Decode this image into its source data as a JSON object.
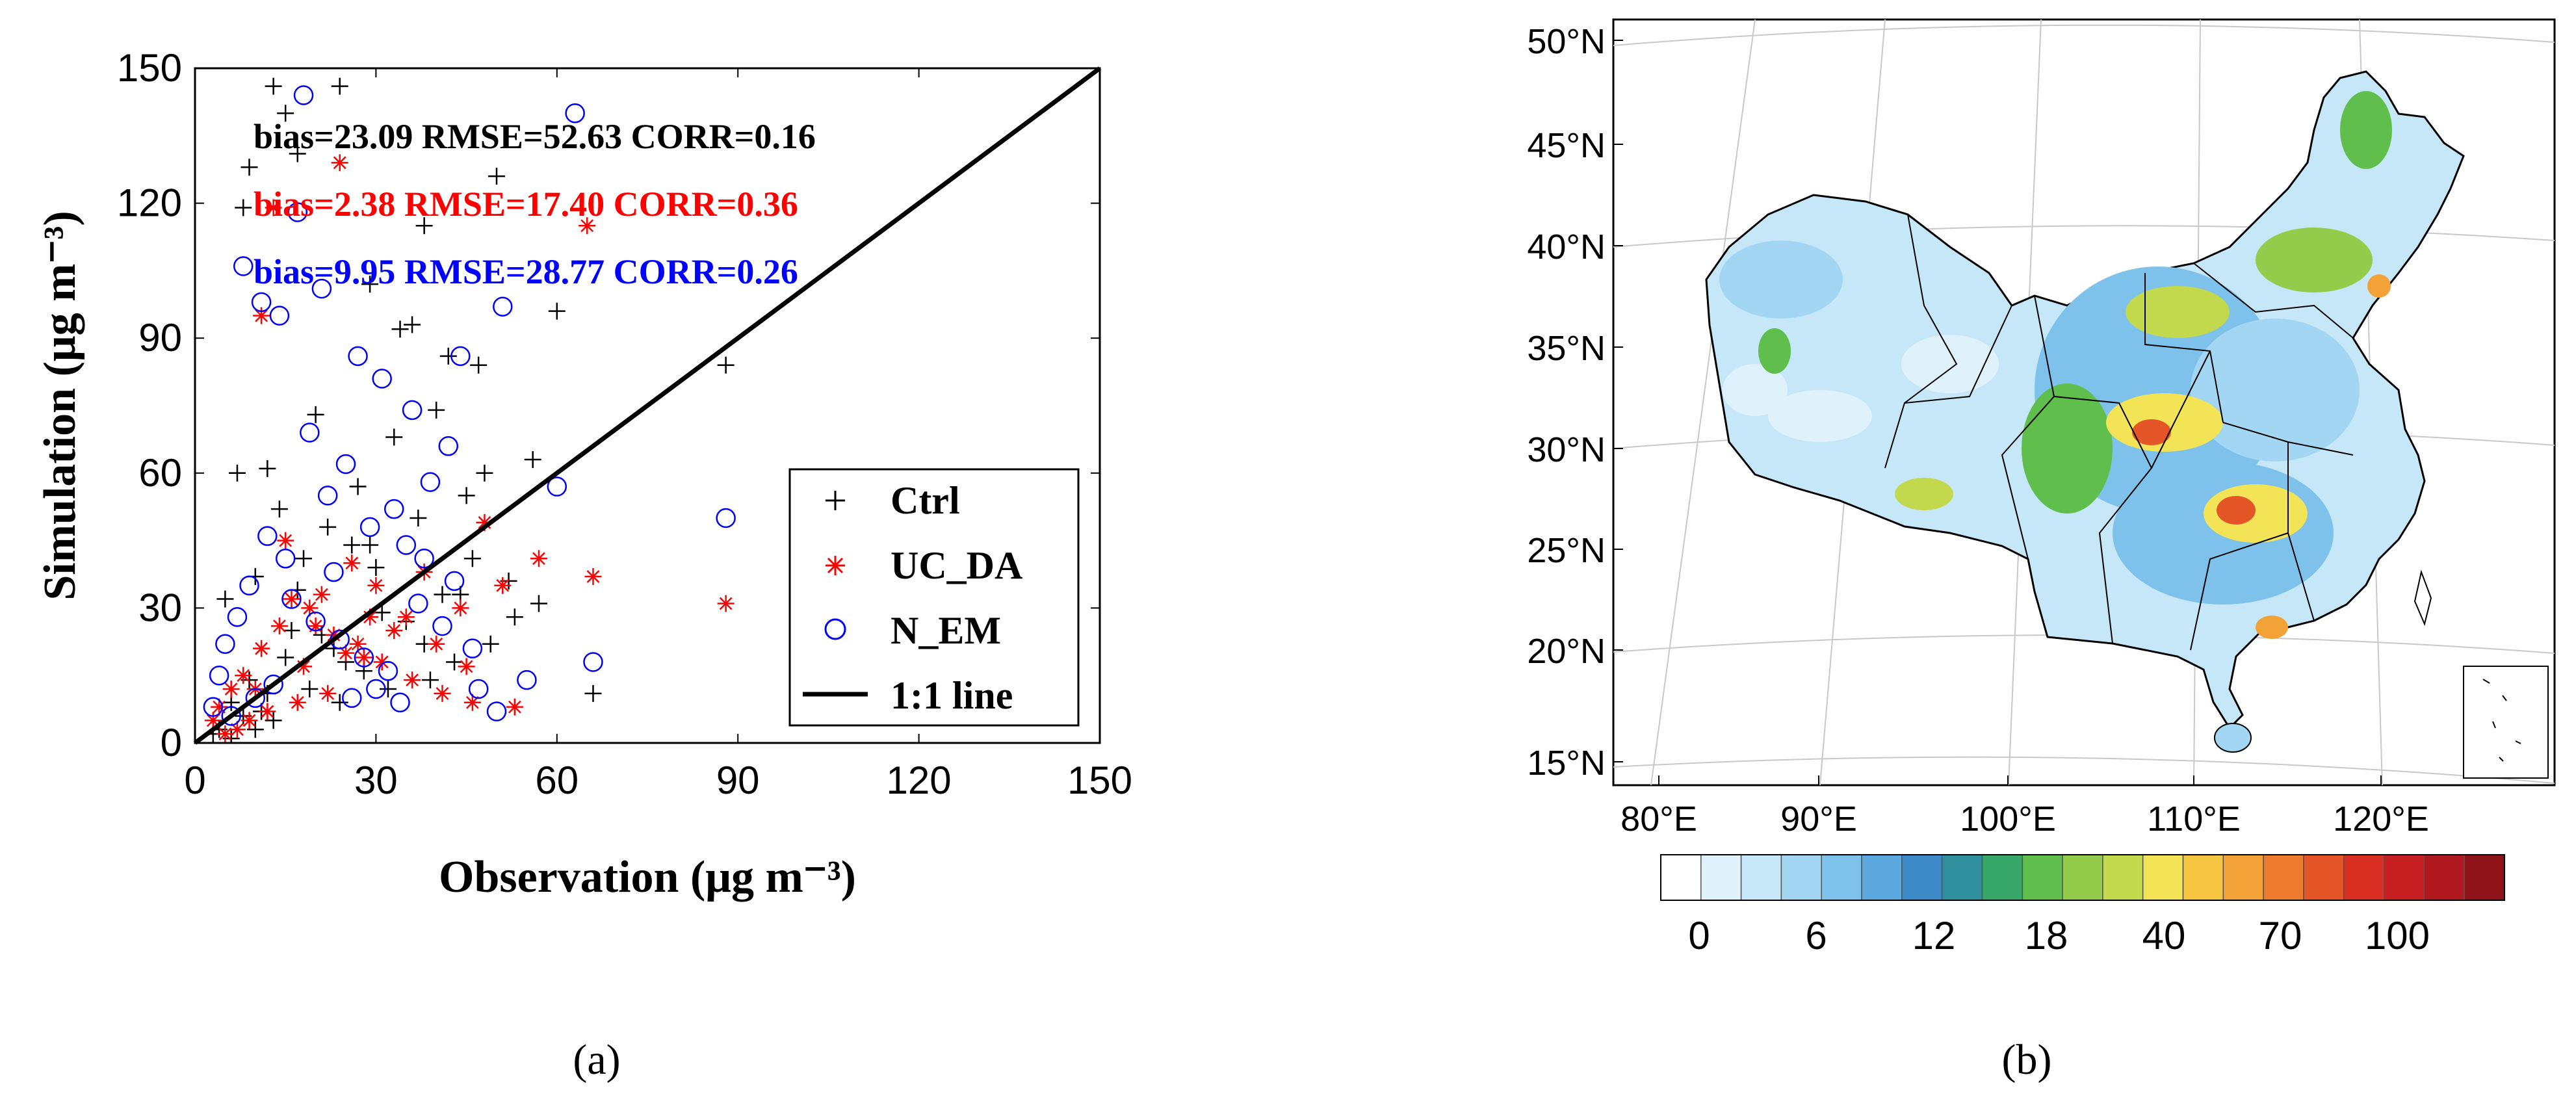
{
  "chart_data": [
    {
      "type": "scatter",
      "panel_label": "(a)",
      "xlabel": "Observation (μg m⁻³)",
      "ylabel": "Simulation (μg m⁻³)",
      "xlim": [
        0,
        150
      ],
      "ylim": [
        0,
        150
      ],
      "x_ticks": [
        "0",
        "30",
        "60",
        "90",
        "120",
        "150"
      ],
      "y_ticks": [
        "0",
        "30",
        "60",
        "90",
        "120",
        "150"
      ],
      "grid": false,
      "legend_position": "bottom-right",
      "stats": [
        {
          "text": "bias=23.09 RMSE=52.63 CORR=0.16",
          "color": "#000000"
        },
        {
          "text": "bias=2.38 RMSE=17.40 CORR=0.36",
          "color": "#ff0000"
        },
        {
          "text": "bias=9.95 RMSE=28.77 CORR=0.26",
          "color": "#0000ff"
        }
      ],
      "series": [
        {
          "name": "Ctrl",
          "marker": "plus",
          "color": "#000000",
          "x": [
            13,
            24,
            15,
            9,
            17,
            50,
            38,
            8,
            29,
            60,
            34,
            36,
            42,
            47,
            56,
            88,
            66,
            48,
            45,
            40,
            20,
            12,
            27,
            33,
            7,
            5,
            22,
            18,
            10,
            14,
            26,
            31,
            44,
            53,
            38,
            25,
            16,
            9,
            6,
            11,
            19,
            23,
            28,
            35,
            41,
            30,
            21,
            15,
            12,
            8,
            4,
            3,
            17,
            29,
            37,
            46,
            52,
            57,
            49,
            43,
            39,
            32,
            24,
            13,
            10,
            6
          ],
          "y": [
            146,
            146,
            140,
            128,
            131,
            126,
            115,
            119,
            102,
            96,
            92,
            93,
            86,
            84,
            63,
            84,
            11,
            60,
            55,
            74,
            73,
            61,
            57,
            68,
            60,
            32,
            48,
            41,
            37,
            52,
            44,
            29,
            33,
            28,
            22,
            18,
            25,
            14,
            9,
            7,
            12,
            21,
            16,
            27,
            33,
            39,
            24,
            19,
            11,
            6,
            3,
            2,
            34,
            44,
            50,
            41,
            36,
            31,
            22,
            18,
            14,
            12,
            9,
            5,
            3,
            1
          ]
        },
        {
          "name": "UC_DA",
          "marker": "asterisk",
          "color": "#ff0000",
          "x": [
            13,
            24,
            65,
            11,
            88,
            66,
            48,
            57,
            51,
            44,
            38,
            33,
            29,
            25,
            21,
            18,
            14,
            11,
            8,
            6,
            4,
            3,
            16,
            20,
            27,
            31,
            36,
            41,
            46,
            53,
            22,
            17,
            12,
            9,
            7,
            5,
            26,
            30,
            35,
            40,
            45,
            15,
            19,
            23,
            28,
            10
          ],
          "y": [
            119,
            129,
            115,
            95,
            31,
            37,
            49,
            41,
            35,
            30,
            38,
            25,
            28,
            20,
            33,
            17,
            26,
            21,
            15,
            12,
            8,
            5,
            32,
            26,
            22,
            18,
            14,
            11,
            9,
            8,
            11,
            9,
            7,
            5,
            3,
            2,
            40,
            35,
            28,
            22,
            17,
            45,
            30,
            24,
            19,
            12
          ]
        },
        {
          "name": "N_EM",
          "marker": "circle",
          "color": "#0000ff",
          "x": [
            18,
            63,
            17,
            8,
            11,
            14,
            21,
            27,
            31,
            36,
            44,
            51,
            60,
            88,
            66,
            50,
            47,
            43,
            38,
            33,
            29,
            25,
            22,
            19,
            15,
            12,
            9,
            7,
            5,
            4,
            3,
            16,
            20,
            24,
            28,
            32,
            37,
            41,
            46,
            55,
            26,
            30,
            34,
            13,
            10,
            6,
            23,
            35,
            39,
            42
          ],
          "y": [
            144,
            140,
            118,
            106,
            98,
            95,
            101,
            86,
            81,
            74,
            86,
            97,
            57,
            50,
            18,
            7,
            12,
            36,
            41,
            52,
            48,
            62,
            55,
            69,
            41,
            46,
            35,
            28,
            22,
            15,
            8,
            32,
            27,
            23,
            19,
            16,
            31,
            26,
            21,
            14,
            10,
            12,
            9,
            13,
            10,
            6,
            38,
            44,
            58,
            66
          ]
        }
      ],
      "reference_line": {
        "name": "1:1 line",
        "x": [
          0,
          150
        ],
        "y": [
          0,
          150
        ],
        "color": "#000000"
      }
    },
    {
      "type": "heatmap",
      "panel_label": "(b)",
      "title": "",
      "lat_ticks": [
        "50°N",
        "45°N",
        "40°N",
        "35°N",
        "30°N",
        "25°N",
        "20°N",
        "15°N"
      ],
      "lon_ticks": [
        "80°E",
        "90°E",
        "100°E",
        "110°E",
        "120°E"
      ],
      "colorbar_ticks": [
        "0",
        "6",
        "12",
        "18",
        "40",
        "70",
        "100"
      ],
      "colorbar_colors": [
        "#ffffff",
        "#dff1fb",
        "#c6e7f7",
        "#a3d6f2",
        "#7ec2eb",
        "#5aa8de",
        "#3e8ac8",
        "#2f8f9c",
        "#38a86a",
        "#5fbe4c",
        "#92cc4a",
        "#c2d84d",
        "#f3e457",
        "#f6c542",
        "#f2a236",
        "#ec7b2d",
        "#e45527",
        "#d93023",
        "#c81f22",
        "#b01820",
        "#8e1319"
      ]
    }
  ]
}
